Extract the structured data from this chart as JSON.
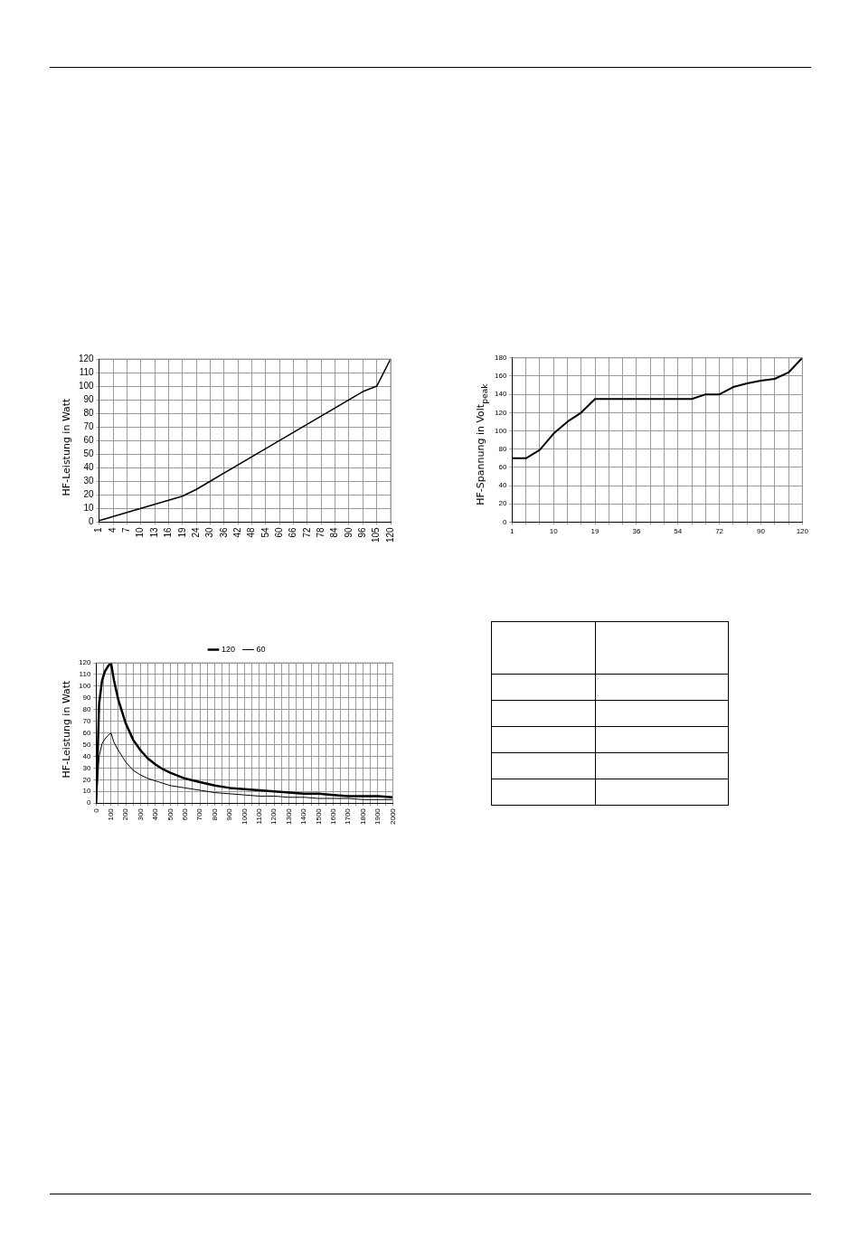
{
  "chart_data": [
    {
      "type": "line",
      "ylabel": "HF-Leistung in Watt",
      "categories": [
        "1",
        "4",
        "7",
        "10",
        "13",
        "16",
        "19",
        "24",
        "30",
        "36",
        "42",
        "48",
        "54",
        "60",
        "66",
        "72",
        "78",
        "84",
        "90",
        "96",
        "105",
        "120"
      ],
      "series": [
        {
          "color": "#000000",
          "values": [
            1,
            4,
            7,
            10,
            13,
            16,
            19,
            24,
            30,
            36,
            42,
            48,
            54,
            60,
            66,
            72,
            78,
            84,
            90,
            96,
            100,
            120
          ]
        }
      ],
      "ylim": [
        0,
        120
      ],
      "yticks": [
        0,
        10,
        20,
        30,
        40,
        50,
        60,
        70,
        80,
        90,
        100,
        110,
        120
      ],
      "grid": true
    },
    {
      "type": "line",
      "ylabel": "HF-Spannung in Volt$_{peak}$",
      "categories": [
        "1",
        null,
        null,
        "10",
        null,
        null,
        "19",
        null,
        null,
        "36",
        null,
        null,
        "54",
        null,
        null,
        "72",
        null,
        null,
        "90",
        null,
        null,
        "120"
      ],
      "series": [
        {
          "color": "#000000",
          "values": [
            70,
            70,
            79,
            97,
            110,
            120,
            135,
            135,
            135,
            135,
            135,
            135,
            135,
            135,
            140,
            140,
            148,
            152,
            155,
            157,
            164,
            180
          ]
        }
      ],
      "ylim": [
        0,
        180
      ],
      "yticks": [
        0,
        20,
        40,
        60,
        80,
        100,
        120,
        140,
        160,
        180
      ],
      "grid": true
    },
    {
      "type": "line",
      "ylabel": "HF-Leistung in Watt",
      "legend": "top",
      "series": [
        {
          "name": "120",
          "color": "#000000",
          "x": [
            0,
            20,
            40,
            60,
            80,
            100,
            120,
            150,
            200,
            250,
            300,
            350,
            400,
            450,
            500,
            600,
            700,
            800,
            900,
            1000,
            1100,
            1200,
            1300,
            1400,
            1500,
            1600,
            1700,
            1800,
            1900,
            2000
          ],
          "values": [
            0,
            85,
            105,
            113,
            117,
            120,
            105,
            88,
            68,
            54,
            45,
            38,
            33,
            29,
            26,
            21,
            18,
            15,
            13,
            12,
            11,
            10,
            9,
            8,
            8,
            7,
            6,
            6,
            6,
            5
          ]
        },
        {
          "name": "60",
          "color": "#000000",
          "x": [
            0,
            20,
            40,
            60,
            80,
            100,
            120,
            150,
            200,
            250,
            300,
            350,
            400,
            450,
            500,
            600,
            700,
            800,
            900,
            1000,
            1100,
            1200,
            1300,
            1400,
            1500,
            1600,
            1700,
            1800,
            1900,
            2000
          ],
          "values": [
            0,
            40,
            51,
            55,
            58,
            60,
            52,
            45,
            35,
            28,
            24,
            21,
            19,
            17,
            15,
            13,
            11,
            9,
            8,
            7,
            6,
            6,
            5,
            5,
            4,
            4,
            4,
            3,
            3,
            3
          ]
        }
      ],
      "xlim": [
        0,
        2000
      ],
      "xticks": [
        0,
        {
          "value": 50,
          "label": null
        },
        100,
        {
          "value": 150,
          "label": null
        },
        200,
        {
          "value": 250,
          "label": null
        },
        300,
        {
          "value": 350,
          "label": null
        },
        400,
        {
          "value": 450,
          "label": null
        },
        500,
        {
          "value": 550,
          "label": null
        },
        600,
        {
          "value": 650,
          "label": null
        },
        700,
        {
          "value": 750,
          "label": null
        },
        800,
        {
          "value": 850,
          "label": null
        },
        900,
        {
          "value": 950,
          "label": null
        },
        1000,
        {
          "value": 1050,
          "label": null
        },
        1100,
        {
          "value": 1150,
          "label": null
        },
        1200,
        {
          "value": 1250,
          "label": null
        },
        1300,
        {
          "value": 1350,
          "label": null
        },
        1400,
        {
          "value": 1450,
          "label": null
        },
        1500,
        {
          "value": 1550,
          "label": null
        },
        1600,
        {
          "value": 1650,
          "label": null
        },
        1700,
        {
          "value": 1750,
          "label": null
        },
        1800,
        {
          "value": 1850,
          "label": null
        },
        1900,
        {
          "value": 1950,
          "label": null
        },
        2000
      ],
      "ylim": [
        0,
        120
      ],
      "yticks": [
        0,
        10,
        20,
        30,
        40,
        50,
        60,
        70,
        80,
        90,
        100,
        110,
        120
      ],
      "grid": true
    }
  ]
}
